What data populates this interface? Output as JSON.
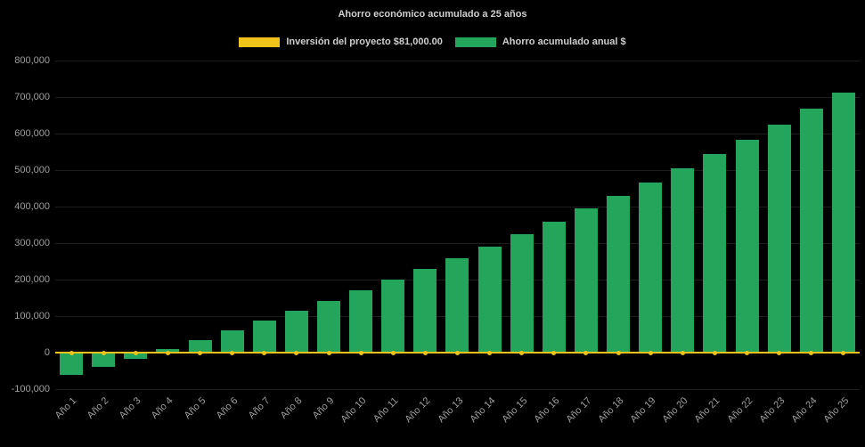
{
  "chart_data": {
    "type": "bar",
    "title": "Ahorro económico acumulado a 25 años",
    "categories": [
      "Año 1",
      "Año 2",
      "Año 3",
      "Año 4",
      "Año 5",
      "Año 6",
      "Año 7",
      "Año 8",
      "Año 9",
      "Año 10",
      "Año 11",
      "Año 12",
      "Año 13",
      "Año 14",
      "Año 15",
      "Año 16",
      "Año 17",
      "Año 18",
      "Año 19",
      "Año 20",
      "Año 21",
      "Año 22",
      "Año 23",
      "Año 24",
      "Año 25"
    ],
    "series": [
      {
        "name": "Inversión del proyecto $81,000.00",
        "type": "line",
        "color": "#efc319",
        "values": [
          0,
          0,
          0,
          0,
          0,
          0,
          0,
          0,
          0,
          0,
          0,
          0,
          0,
          0,
          0,
          0,
          0,
          0,
          0,
          0,
          0,
          0,
          0,
          0,
          0
        ]
      },
      {
        "name": "Ahorro acumulado anual $",
        "type": "bar",
        "color": "#23a55c",
        "values": [
          -60000,
          -39000,
          -17000,
          9000,
          35000,
          62000,
          89000,
          115000,
          142000,
          171000,
          200000,
          229000,
          259000,
          291000,
          324000,
          358000,
          394000,
          430000,
          467000,
          505000,
          543000,
          583000,
          625000,
          668000,
          712000
        ]
      }
    ],
    "ylim": [
      -100000,
      800000
    ],
    "yticks": [
      {
        "value": 800000,
        "label": "800,000"
      },
      {
        "value": 700000,
        "label": "700,000"
      },
      {
        "value": 600000,
        "label": "600,000"
      },
      {
        "value": 500000,
        "label": "500,000"
      },
      {
        "value": 400000,
        "label": "400,000"
      },
      {
        "value": 300000,
        "label": "300,000"
      },
      {
        "value": 200000,
        "label": "200,000"
      },
      {
        "value": 100000,
        "label": "100,000"
      },
      {
        "value": 0,
        "label": "0"
      },
      {
        "value": -100000,
        "label": "-100,000"
      }
    ],
    "grid": true,
    "legend_position": "top",
    "background": "#000000",
    "text_color": "#9e9e9e"
  }
}
